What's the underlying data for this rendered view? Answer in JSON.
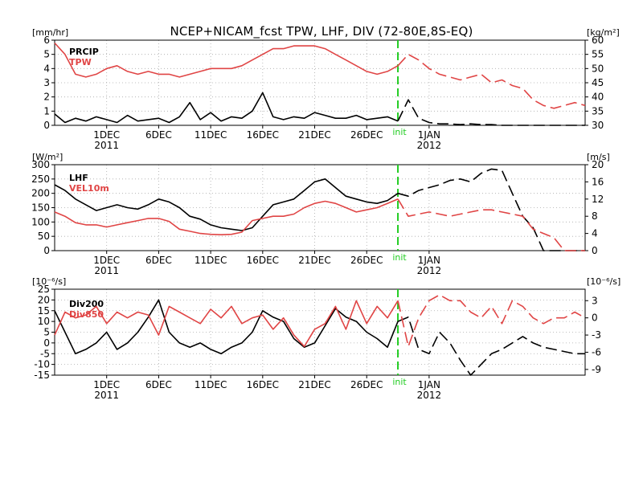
{
  "title": "NCEP+NICAM_fcst TPW, LHF, DIV (72-80E,8S-EQ)",
  "colors": {
    "black": "#000000",
    "red": "#e04545",
    "green": "#22cc22",
    "grid": "#aaaaaa"
  },
  "x_axis": {
    "min": 0,
    "max": 51,
    "ticks": [
      {
        "x": 5,
        "label": "1DEC",
        "year": "2011"
      },
      {
        "x": 10,
        "label": "6DEC",
        "year": ""
      },
      {
        "x": 15,
        "label": "11DEC",
        "year": ""
      },
      {
        "x": 20,
        "label": "16DEC",
        "year": ""
      },
      {
        "x": 25,
        "label": "21DEC",
        "year": ""
      },
      {
        "x": 30,
        "label": "26DEC",
        "year": ""
      },
      {
        "x": 36,
        "label": "1JAN",
        "year": "2012"
      }
    ],
    "init_x": 33.0,
    "init_label": "init"
  },
  "chart_data": [
    {
      "type": "line",
      "left_unit": "[mm/hr]",
      "right_unit": "[kg/m²]",
      "left_ylim": [
        0,
        6
      ],
      "left_ticks": [
        0,
        1,
        2,
        3,
        4,
        5,
        6
      ],
      "right_ylim": [
        30,
        60
      ],
      "right_ticks": [
        30,
        35,
        40,
        45,
        50,
        55,
        60
      ],
      "series": [
        {
          "name": "PRCIP",
          "axis": "left",
          "color": "#000000",
          "split_x": 33,
          "x": [
            0,
            1,
            2,
            3,
            4,
            5,
            6,
            7,
            8,
            9,
            10,
            11,
            12,
            13,
            14,
            15,
            16,
            17,
            18,
            19,
            20,
            21,
            22,
            23,
            24,
            25,
            26,
            27,
            28,
            29,
            30,
            31,
            32,
            33,
            34,
            35,
            36,
            37,
            38,
            39,
            40,
            41,
            42,
            43,
            44,
            45,
            46,
            47,
            48,
            49,
            50,
            51
          ],
          "y": [
            0.8,
            0.2,
            0.5,
            0.3,
            0.6,
            0.4,
            0.2,
            0.7,
            0.3,
            0.4,
            0.5,
            0.2,
            0.6,
            1.6,
            0.4,
            0.9,
            0.3,
            0.6,
            0.5,
            1.0,
            2.3,
            0.6,
            0.4,
            0.6,
            0.5,
            0.9,
            0.7,
            0.5,
            0.5,
            0.7,
            0.4,
            0.5,
            0.6,
            0.3,
            1.8,
            0.5,
            0.2,
            0.1,
            0.1,
            0.05,
            0.1,
            0.05,
            0.05,
            0,
            0,
            0,
            0,
            0,
            0,
            0,
            0,
            0
          ]
        },
        {
          "name": "TPW",
          "axis": "right",
          "color": "#e04545",
          "split_x": 33,
          "x": [
            0,
            1,
            2,
            3,
            4,
            5,
            6,
            7,
            8,
            9,
            10,
            11,
            12,
            13,
            14,
            15,
            16,
            17,
            18,
            19,
            20,
            21,
            22,
            23,
            24,
            25,
            26,
            27,
            28,
            29,
            30,
            31,
            32,
            33,
            34,
            35,
            36,
            37,
            38,
            39,
            40,
            41,
            42,
            43,
            44,
            45,
            46,
            47,
            48,
            49,
            50,
            51
          ],
          "y": [
            59,
            55,
            48,
            47,
            48,
            50,
            51,
            49,
            48,
            49,
            48,
            48,
            47,
            48,
            49,
            50,
            50,
            50,
            51,
            53,
            55,
            57,
            57,
            58,
            58,
            58,
            57,
            55,
            53,
            51,
            49,
            48,
            49,
            51,
            55,
            53,
            50,
            48,
            47,
            46,
            47,
            48,
            45,
            46,
            44,
            43,
            39,
            37,
            36,
            37,
            38,
            37
          ]
        }
      ]
    },
    {
      "type": "line",
      "left_unit": "[W/m²]",
      "right_unit": "[m/s]",
      "left_ylim": [
        0,
        300
      ],
      "left_ticks": [
        0,
        50,
        100,
        150,
        200,
        250,
        300
      ],
      "right_ylim": [
        0,
        20
      ],
      "right_ticks": [
        0,
        4,
        8,
        12,
        16,
        20
      ],
      "series": [
        {
          "name": "LHF",
          "axis": "left",
          "color": "#000000",
          "split_x": 33,
          "x": [
            0,
            1,
            2,
            3,
            4,
            5,
            6,
            7,
            8,
            9,
            10,
            11,
            12,
            13,
            14,
            15,
            16,
            17,
            18,
            19,
            20,
            21,
            22,
            23,
            24,
            25,
            26,
            27,
            28,
            29,
            30,
            31,
            32,
            33,
            34,
            35,
            36,
            37,
            38,
            39,
            40,
            41,
            42,
            43,
            44,
            45,
            46,
            47,
            48,
            49,
            50,
            51
          ],
          "y": [
            230,
            210,
            180,
            160,
            140,
            150,
            160,
            150,
            145,
            160,
            180,
            170,
            150,
            120,
            110,
            90,
            80,
            75,
            70,
            80,
            120,
            160,
            170,
            180,
            210,
            240,
            250,
            220,
            190,
            180,
            170,
            165,
            175,
            200,
            190,
            210,
            220,
            230,
            245,
            250,
            240,
            270,
            285,
            280,
            200,
            120,
            80,
            0,
            0,
            0,
            0,
            0
          ]
        },
        {
          "name": "VEL10m",
          "axis": "right",
          "color": "#e04545",
          "split_x": 33,
          "x": [
            0,
            1,
            2,
            3,
            4,
            5,
            6,
            7,
            8,
            9,
            10,
            11,
            12,
            13,
            14,
            15,
            16,
            17,
            18,
            19,
            20,
            21,
            22,
            23,
            24,
            25,
            26,
            27,
            28,
            29,
            30,
            31,
            32,
            33,
            34,
            35,
            36,
            37,
            38,
            39,
            40,
            41,
            42,
            43,
            44,
            45,
            46,
            47,
            48,
            49,
            50,
            51
          ],
          "y": [
            9,
            8,
            6.5,
            6,
            6,
            5.5,
            6,
            6.5,
            7,
            7.5,
            7.5,
            6.8,
            5,
            4.5,
            4,
            3.8,
            3.7,
            3.8,
            4.3,
            7,
            7.5,
            8,
            8,
            8.5,
            10,
            11,
            11.5,
            11,
            10,
            9,
            9.5,
            10,
            11,
            12,
            8,
            8.5,
            9,
            8.5,
            8,
            8.5,
            9,
            9.5,
            9.5,
            9,
            8.5,
            8,
            5,
            4,
            3,
            0,
            0,
            0
          ]
        }
      ]
    },
    {
      "type": "line",
      "left_unit": "[10⁻⁶/s]",
      "right_unit": "[10⁻⁶/s]",
      "left_ylim": [
        -15,
        25
      ],
      "left_ticks": [
        -15,
        -10,
        -5,
        0,
        5,
        10,
        15,
        20,
        25
      ],
      "right_ylim": [
        -10,
        5
      ],
      "right_ticks": [
        -9,
        -6,
        -3,
        0,
        3
      ],
      "series": [
        {
          "name": "Div200",
          "axis": "left",
          "color": "#000000",
          "split_x": 33,
          "x": [
            0,
            1,
            2,
            3,
            4,
            5,
            6,
            7,
            8,
            9,
            10,
            11,
            12,
            13,
            14,
            15,
            16,
            17,
            18,
            19,
            20,
            21,
            22,
            23,
            24,
            25,
            26,
            27,
            28,
            29,
            30,
            31,
            32,
            33,
            34,
            35,
            36,
            37,
            38,
            39,
            40,
            41,
            42,
            43,
            44,
            45,
            46,
            47,
            48,
            49,
            50,
            51
          ],
          "y": [
            15,
            5,
            -5,
            -3,
            0,
            5,
            -3,
            0,
            5,
            12,
            20,
            5,
            0,
            -2,
            0,
            -3,
            -5,
            -2,
            0,
            5,
            15,
            12,
            10,
            2,
            -2,
            0,
            8,
            16,
            12,
            10,
            5,
            2,
            -2,
            10,
            12,
            -3,
            -5,
            5,
            0,
            -8,
            -15,
            -10,
            -5,
            -3,
            0,
            3,
            0,
            -2,
            -3,
            -4,
            -5,
            -5
          ]
        },
        {
          "name": "Div850",
          "axis": "right",
          "color": "#e04545",
          "split_x": 33,
          "x": [
            0,
            1,
            2,
            3,
            4,
            5,
            6,
            7,
            8,
            9,
            10,
            11,
            12,
            13,
            14,
            15,
            16,
            17,
            18,
            19,
            20,
            21,
            22,
            23,
            24,
            25,
            26,
            27,
            28,
            29,
            30,
            31,
            32,
            33,
            34,
            35,
            36,
            37,
            38,
            39,
            40,
            41,
            42,
            43,
            44,
            45,
            46,
            47,
            48,
            49,
            50,
            51
          ],
          "y": [
            -3,
            1,
            0,
            0.5,
            2,
            -1,
            1,
            0,
            1,
            0.5,
            -3,
            2,
            1,
            0,
            -1,
            1.5,
            0,
            2,
            -1,
            0,
            0.5,
            -2,
            0,
            -3,
            -5,
            -2,
            -1,
            2,
            -2,
            3,
            -1,
            2,
            0,
            3,
            -5,
            0,
            3,
            4,
            3,
            3,
            1,
            0,
            2,
            -1,
            3,
            2,
            0,
            -1,
            0,
            0,
            1,
            0
          ]
        }
      ]
    }
  ]
}
